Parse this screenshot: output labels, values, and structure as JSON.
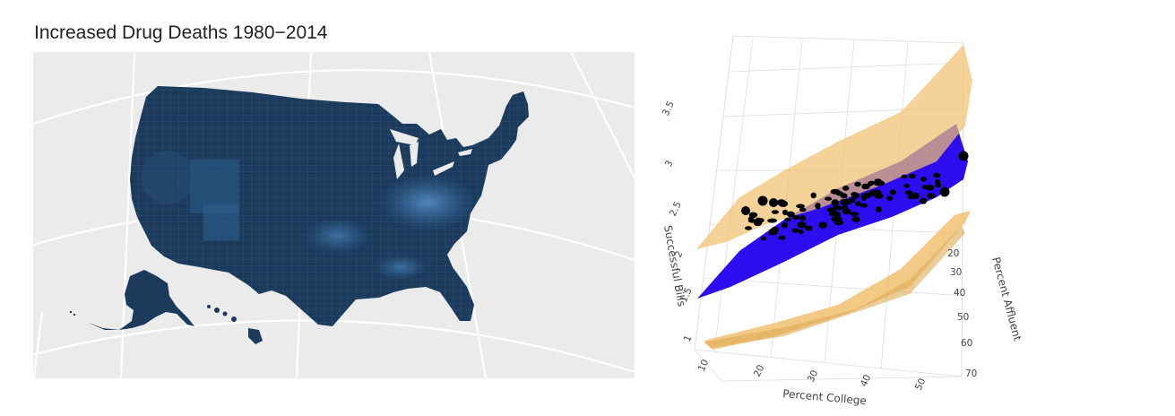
{
  "map": {
    "title": "Increased Drug Deaths 1980−2014",
    "fill_color": "#1b3a5c",
    "highlight_color": "#4d86c0",
    "background": "#ebebeb"
  },
  "chart_data": [
    {
      "type": "map",
      "title": "Increased Drug Deaths 1980−2014",
      "region": "United States counties",
      "legend": "none"
    },
    {
      "type": "surface3d",
      "xlabel": "Percent College",
      "ylabel": "Percent Affluent",
      "zlabel": "Successful Bills",
      "x_ticks": [
        "10",
        "20",
        "30",
        "40",
        "50"
      ],
      "y_ticks": [
        "20",
        "30",
        "40",
        "50",
        "60",
        "70"
      ],
      "z_ticks": [
        "1",
        "1.5",
        "2",
        "2.5",
        "3",
        "3.5"
      ],
      "surfaces": [
        {
          "role": "fitted",
          "color": "#2200ee"
        },
        {
          "role": "upper confidence",
          "color": "#f0c070"
        },
        {
          "role": "lower confidence",
          "color": "#f0c070"
        }
      ],
      "points_color": "#000000"
    }
  ]
}
